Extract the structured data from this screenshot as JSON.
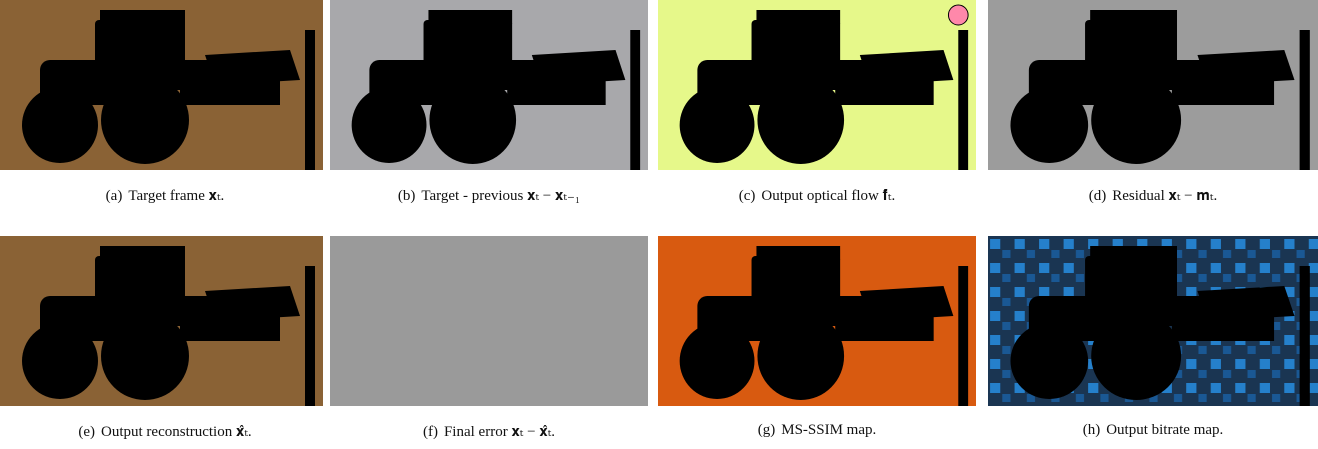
{
  "figure": {
    "panels": [
      {
        "label": "(a)",
        "caption": "Target frame 𝐱ₜ."
      },
      {
        "label": "(b)",
        "caption": "Target - previous 𝐱ₜ − 𝐱ₜ₋₁"
      },
      {
        "label": "(c)",
        "caption": "Output optical flow 𝐟̂ₜ."
      },
      {
        "label": "(d)",
        "caption": "Residual 𝐱ₜ − 𝐦ₜ."
      },
      {
        "label": "(e)",
        "caption": "Output reconstruction 𝐱̂ₜ."
      },
      {
        "label": "(f)",
        "caption": "Final error 𝐱ₜ − 𝐱̂ₜ."
      },
      {
        "label": "(g)",
        "caption": "MS-SSIM map."
      },
      {
        "label": "(h)",
        "caption": "Output bitrate map."
      }
    ]
  }
}
